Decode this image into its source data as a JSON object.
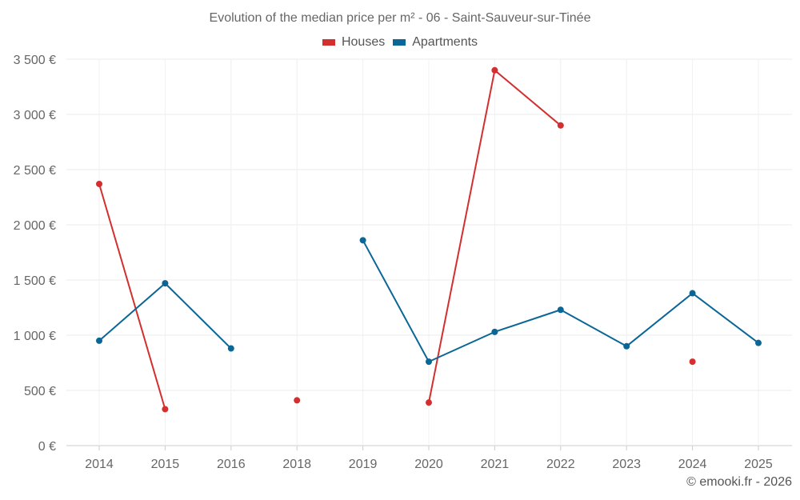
{
  "chart_data": {
    "type": "line",
    "title": "Evolution of the median price per m² - 06 - Saint-Sauveur-sur-Tinée",
    "xlabel": "",
    "ylabel": "",
    "categories": [
      "2014",
      "2015",
      "2016",
      "2018",
      "2019",
      "2020",
      "2021",
      "2022",
      "2023",
      "2024",
      "2025"
    ],
    "ylim": [
      0,
      3500
    ],
    "yticks": [
      0,
      500,
      1000,
      1500,
      2000,
      2500,
      3000,
      3500
    ],
    "ytick_labels": [
      "0 €",
      "500 €",
      "1 000 €",
      "1 500 €",
      "2 000 €",
      "2 500 €",
      "3 000 €",
      "3 500 €"
    ],
    "grid": true,
    "legend_position": "top-center",
    "series": [
      {
        "name": "Houses",
        "color": "#d32f2f",
        "values": [
          2370,
          330,
          null,
          410,
          null,
          390,
          3400,
          2900,
          null,
          760,
          null
        ]
      },
      {
        "name": "Apartments",
        "color": "#0a6696",
        "values": [
          950,
          1470,
          880,
          null,
          1860,
          760,
          1030,
          1230,
          900,
          1380,
          930
        ]
      }
    ]
  },
  "copyright": "© emooki.fr - 2026"
}
